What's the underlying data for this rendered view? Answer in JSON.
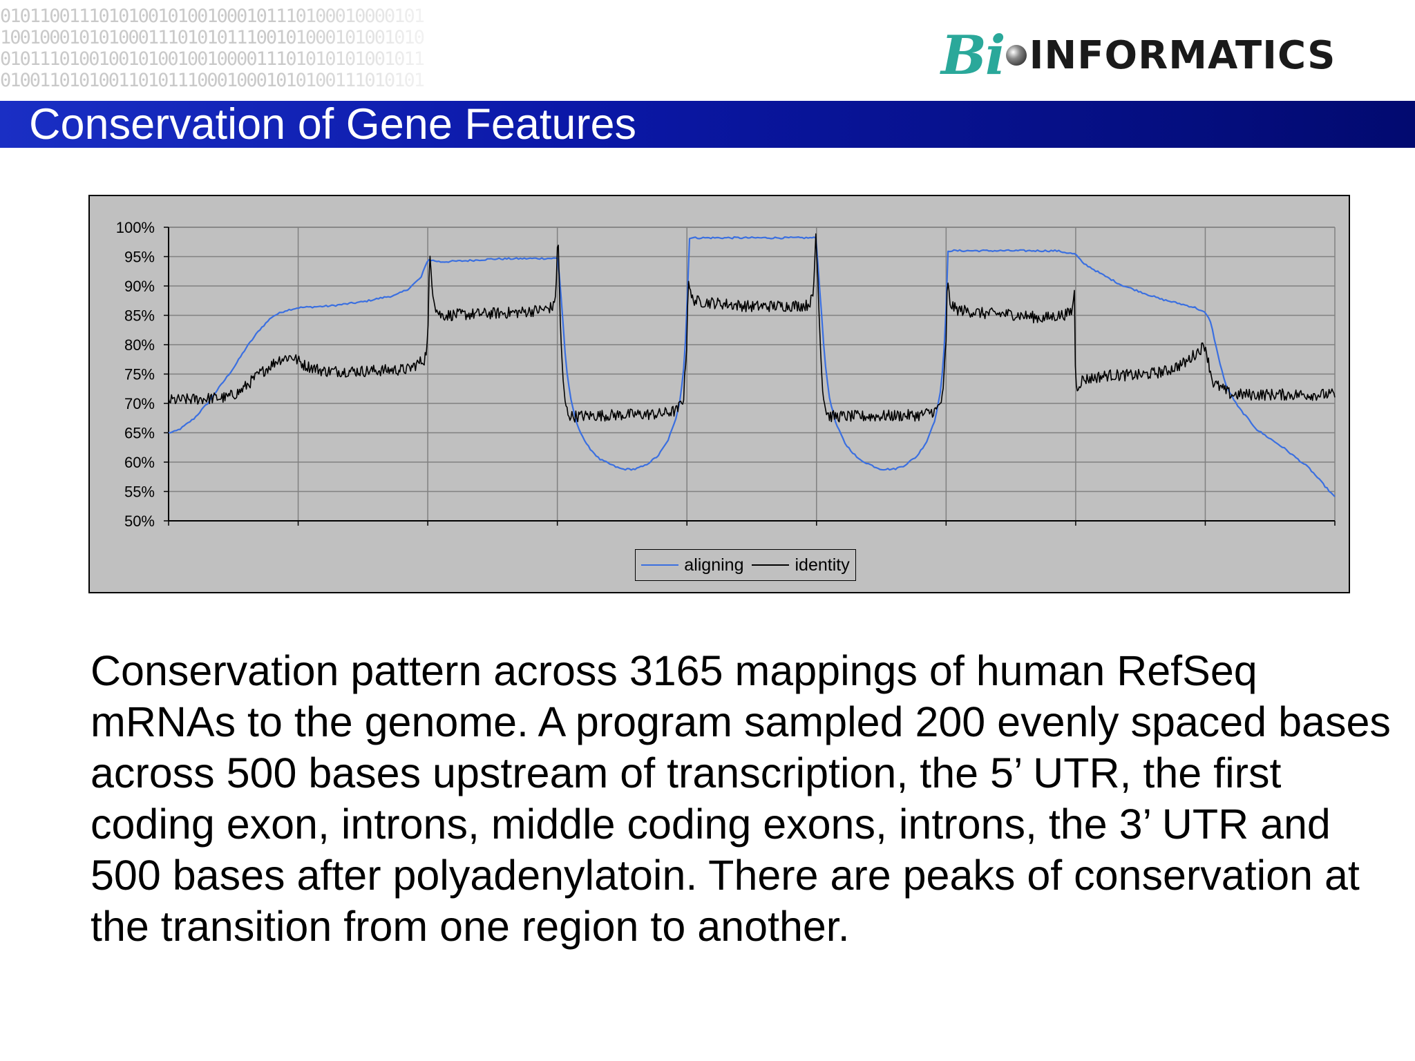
{
  "header": {
    "binary_rows": [
      "0101100111010100101001000101110100010000101",
      "1001000101010001110101011100101000101001010",
      "0101110100100101001001000011101010101001011",
      "0100110101001101011100010001010100111010101"
    ],
    "logo": {
      "script_part": "Bi",
      "text_part": "INFORMATICS",
      "script_color": "#2aa89a"
    }
  },
  "slide": {
    "title": "Conservation of Gene Features",
    "title_bar_color": "#0b18a8",
    "body": "Conservation pattern across 3165 mappings of human RefSeq mRNAs to the genome.  A program sampled 200 evenly spaced bases across 500 bases upstream of transcription, the 5’ UTR, the first coding exon, introns, middle coding exons, introns, the 3’ UTR and 500 bases after polyadenylatoin. There are peaks of conservation at the transition from one region to another."
  },
  "chart_data": {
    "type": "line",
    "title": "",
    "xlabel": "",
    "ylabel": "",
    "ylim": [
      50,
      100
    ],
    "y_ticks": [
      "100%",
      "95%",
      "90%",
      "85%",
      "80%",
      "75%",
      "70%",
      "65%",
      "60%",
      "55%",
      "50%"
    ],
    "x_count": 1800,
    "segments": 9,
    "grid": true,
    "plot_background": "#c0c0c0",
    "legend_position": "bottom",
    "series": [
      {
        "name": "aligning",
        "color": "#3a6fe0",
        "noise": 0.15,
        "points": [
          [
            0,
            65
          ],
          [
            10,
            65.2
          ],
          [
            20,
            65.8
          ],
          [
            40,
            67.5
          ],
          [
            60,
            70
          ],
          [
            80,
            73
          ],
          [
            100,
            76
          ],
          [
            120,
            79.5
          ],
          [
            140,
            82.5
          ],
          [
            160,
            84.8
          ],
          [
            180,
            85.8
          ],
          [
            200,
            86.3
          ],
          [
            250,
            86.6
          ],
          [
            300,
            87.3
          ],
          [
            330,
            88
          ],
          [
            350,
            88.4
          ],
          [
            370,
            89.5
          ],
          [
            390,
            91.5
          ],
          [
            400,
            94.5
          ],
          [
            410,
            94.3
          ],
          [
            420,
            94.1
          ],
          [
            460,
            94.3
          ],
          [
            500,
            94.6
          ],
          [
            580,
            94.7
          ],
          [
            600,
            94.7
          ],
          [
            603,
            92
          ],
          [
            608,
            85
          ],
          [
            613,
            77
          ],
          [
            620,
            71
          ],
          [
            630,
            66.5
          ],
          [
            645,
            63
          ],
          [
            665,
            60.5
          ],
          [
            690,
            59.2
          ],
          [
            700,
            58.8
          ],
          [
            720,
            58.8
          ],
          [
            735,
            59.4
          ],
          [
            755,
            61
          ],
          [
            770,
            63.5
          ],
          [
            782,
            67
          ],
          [
            790,
            71
          ],
          [
            796,
            77
          ],
          [
            800,
            85
          ],
          [
            803,
            98.2
          ],
          [
            900,
            98.2
          ],
          [
            1000,
            98.2
          ],
          [
            1003,
            92
          ],
          [
            1008,
            85
          ],
          [
            1013,
            77
          ],
          [
            1020,
            71
          ],
          [
            1030,
            66.5
          ],
          [
            1045,
            63
          ],
          [
            1065,
            60.5
          ],
          [
            1090,
            59.2
          ],
          [
            1100,
            58.8
          ],
          [
            1120,
            58.8
          ],
          [
            1135,
            59.4
          ],
          [
            1155,
            61
          ],
          [
            1170,
            63.5
          ],
          [
            1182,
            67
          ],
          [
            1190,
            71
          ],
          [
            1196,
            77
          ],
          [
            1200,
            86
          ],
          [
            1203,
            96
          ],
          [
            1300,
            96
          ],
          [
            1370,
            96
          ],
          [
            1395,
            95.5
          ],
          [
            1400,
            95.4
          ],
          [
            1410,
            94
          ],
          [
            1440,
            92
          ],
          [
            1470,
            90.2
          ],
          [
            1500,
            89
          ],
          [
            1530,
            87.8
          ],
          [
            1560,
            87
          ],
          [
            1585,
            86.3
          ],
          [
            1600,
            85.4
          ],
          [
            1608,
            84
          ],
          [
            1620,
            78
          ],
          [
            1632,
            73
          ],
          [
            1650,
            69.5
          ],
          [
            1665,
            67.5
          ],
          [
            1680,
            65.5
          ],
          [
            1720,
            62.5
          ],
          [
            1760,
            59
          ],
          [
            1800,
            54
          ]
        ]
      },
      {
        "name": "identity",
        "color": "#000000",
        "noise": 1.0,
        "points": [
          [
            0,
            70.5
          ],
          [
            90,
            71
          ],
          [
            110,
            72
          ],
          [
            140,
            75
          ],
          [
            170,
            77.5
          ],
          [
            190,
            78
          ],
          [
            210,
            76.5
          ],
          [
            240,
            75.5
          ],
          [
            300,
            75.5
          ],
          [
            370,
            75.8
          ],
          [
            395,
            77.5
          ],
          [
            400,
            80.5
          ],
          [
            403,
            95.5
          ],
          [
            408,
            89
          ],
          [
            413,
            86
          ],
          [
            420,
            85
          ],
          [
            470,
            85.2
          ],
          [
            540,
            85.5
          ],
          [
            580,
            86
          ],
          [
            595,
            86.5
          ],
          [
            598,
            90
          ],
          [
            601,
            99
          ],
          [
            604,
            86
          ],
          [
            607,
            77
          ],
          [
            610,
            72
          ],
          [
            614,
            69
          ],
          [
            620,
            67.8
          ],
          [
            680,
            68
          ],
          [
            760,
            68.2
          ],
          [
            785,
            68.8
          ],
          [
            795,
            71
          ],
          [
            800,
            81
          ],
          [
            802,
            92
          ],
          [
            806,
            88
          ],
          [
            815,
            87.4
          ],
          [
            900,
            86.5
          ],
          [
            985,
            86.7
          ],
          [
            995,
            88
          ],
          [
            999,
            99
          ],
          [
            1004,
            86
          ],
          [
            1007,
            77
          ],
          [
            1010,
            72
          ],
          [
            1014,
            69
          ],
          [
            1020,
            67.8
          ],
          [
            1080,
            67.8
          ],
          [
            1160,
            68
          ],
          [
            1185,
            68.8
          ],
          [
            1195,
            71
          ],
          [
            1200,
            81
          ],
          [
            1202,
            91
          ],
          [
            1206,
            87
          ],
          [
            1215,
            86
          ],
          [
            1260,
            85.3
          ],
          [
            1300,
            85.2
          ],
          [
            1350,
            84.5
          ],
          [
            1390,
            85.3
          ],
          [
            1395,
            86
          ],
          [
            1398,
            89.5
          ],
          [
            1400,
            72.5
          ],
          [
            1410,
            74
          ],
          [
            1450,
            74.8
          ],
          [
            1500,
            74.8
          ],
          [
            1540,
            75.5
          ],
          [
            1570,
            77
          ],
          [
            1585,
            78.5
          ],
          [
            1600,
            80
          ],
          [
            1605,
            77
          ],
          [
            1612,
            73.5
          ],
          [
            1640,
            71.5
          ],
          [
            1800,
            71.5
          ]
        ]
      }
    ]
  }
}
